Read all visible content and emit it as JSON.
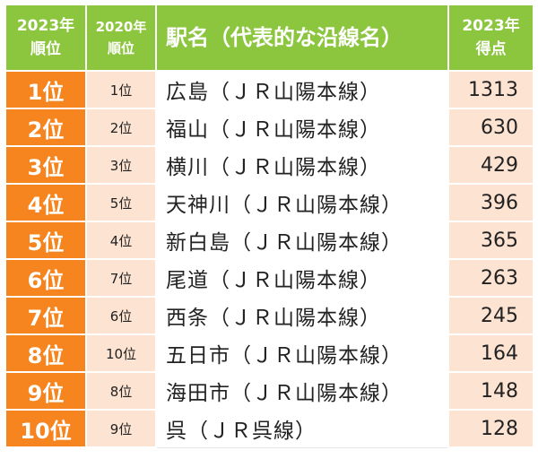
{
  "header": {
    "rank2023_line1": "2023年",
    "rank2023_line2": "順位",
    "rank2020_line1": "2020年",
    "rank2020_line2": "順位",
    "station": "駅名（代表的な沿線名）",
    "score_line1": "2023年",
    "score_line2": "得点"
  },
  "colors": {
    "header_bg": "#8cc63f",
    "rank_bg": "#f6851f",
    "light_bg": "#fde3d2"
  },
  "rows": [
    {
      "rank2023": "1位",
      "rank2020": "1位",
      "station": "広島（ＪＲ山陽本線）",
      "score": "1313"
    },
    {
      "rank2023": "2位",
      "rank2020": "2位",
      "station": "福山（ＪＲ山陽本線）",
      "score": "630"
    },
    {
      "rank2023": "3位",
      "rank2020": "3位",
      "station": "横川（ＪＲ山陽本線）",
      "score": "429"
    },
    {
      "rank2023": "4位",
      "rank2020": "5位",
      "station": "天神川（ＪＲ山陽本線）",
      "score": "396"
    },
    {
      "rank2023": "5位",
      "rank2020": "4位",
      "station": "新白島（ＪＲ山陽本線）",
      "score": "365"
    },
    {
      "rank2023": "6位",
      "rank2020": "7位",
      "station": "尾道（ＪＲ山陽本線）",
      "score": "263"
    },
    {
      "rank2023": "7位",
      "rank2020": "6位",
      "station": "西条（ＪＲ山陽本線）",
      "score": "245"
    },
    {
      "rank2023": "8位",
      "rank2020": "10位",
      "station": "五日市（ＪＲ山陽本線）",
      "score": "164"
    },
    {
      "rank2023": "9位",
      "rank2020": "8位",
      "station": "海田市（ＪＲ山陽本線）",
      "score": "148"
    },
    {
      "rank2023": "10位",
      "rank2020": "9位",
      "station": "呉（ＪＲ呉線）",
      "score": "128"
    }
  ]
}
